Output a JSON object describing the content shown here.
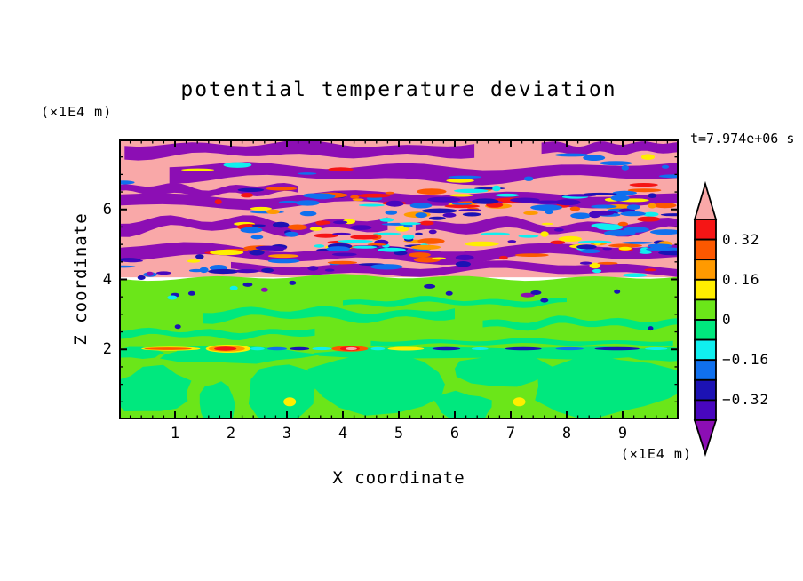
{
  "title": "potential temperature deviation",
  "timestamp_label": "t=7.974e+06 s",
  "z_unit_label": "(×1E4 m)",
  "x_unit_label": "(×1E4 m)",
  "x_axis_label": "X coordinate",
  "z_axis_label": "Z coordinate",
  "chart_data": {
    "type": "heatmap",
    "subtype": "filled_contour",
    "title": "potential temperature deviation",
    "xlabel": "X coordinate",
    "ylabel": "Z coordinate",
    "x_unit": "(×1E4 m)",
    "z_unit": "(×1E4 m)",
    "timestamp": "t=7.974e+06 s",
    "x_range": [
      0,
      10
    ],
    "z_range": [
      0,
      8
    ],
    "x_major_ticks": [
      1,
      2,
      3,
      4,
      5,
      6,
      7,
      8,
      9
    ],
    "z_major_ticks": [
      2,
      4,
      6
    ],
    "x_minor_step": 0.2,
    "z_minor_step": 0.5,
    "grid": false,
    "legend_position": "right-colorbar",
    "contour_levels": [
      -0.4,
      -0.32,
      -0.24,
      -0.16,
      -0.08,
      0,
      0.08,
      0.16,
      0.24,
      0.32,
      0.4
    ],
    "colorbar": {
      "labels": [
        "0.32",
        "0.16",
        "0",
        "−0.16",
        "−0.32"
      ],
      "label_boundaries": [
        1,
        3,
        5,
        7,
        9
      ],
      "segment_colors": [
        "red",
        "orangered",
        "orange",
        "yellow",
        "chartreuse",
        "springgreen",
        "cyan",
        "blue",
        "navy",
        "indigo"
      ],
      "over_color": "pink",
      "under_color": "purple"
    },
    "palette": {
      "pink": "#F9A8A8",
      "red": "#F51515",
      "orangered": "#FC5800",
      "orange": "#FF9A00",
      "yellow": "#FFEE00",
      "chartreuse": "#6BE619",
      "springgreen": "#00E87E",
      "cyan": "#10EFEF",
      "blue": "#1070EE",
      "navy": "#1C12B4",
      "indigo": "#4806BE",
      "purple": "#8C0EB4"
    },
    "field": {
      "description": "Stably stratified upper region (z>4, alternating ±0.4 pink/purple gravity-wave bands with turbulent red-orange-blue breaking layers), near-zero boundary layer below z=4 (chartreuse/springgreen), thin multicolor inversion streak at z≈2, cellular convection pattern below.",
      "pink_top": true,
      "green_top_z": 4.06,
      "inversion_z": 2.02,
      "purple_bands": [
        [
          7.7,
          13,
          2.5,
          0.5,
          0.1,
          6.35
        ],
        [
          7.75,
          11,
          2.0,
          2.1,
          7.55,
          10
        ],
        [
          7.05,
          15,
          3.0,
          1.3,
          0.9,
          10
        ],
        [
          6.55,
          9,
          2.5,
          4.2,
          0,
          3.2
        ],
        [
          6.28,
          12,
          3.0,
          2.6,
          0,
          10
        ],
        [
          5.55,
          12,
          4.0,
          0.9,
          0,
          4.8
        ],
        [
          5.5,
          11,
          3.5,
          3.7,
          5.3,
          10
        ],
        [
          4.75,
          13,
          4.0,
          1.7,
          0,
          10
        ],
        [
          4.3,
          9,
          3.0,
          5.1,
          2.0,
          10
        ]
      ],
      "streak_clusters": [
        {
          "x": [
            1.2,
            9.95
          ],
          "z": [
            5.85,
            6.62
          ],
          "n": 55,
          "seed": 7,
          "colors": [
            "red",
            "orangered",
            "orange",
            "yellow",
            "cyan",
            "blue",
            "navy"
          ]
        },
        {
          "x": [
            2.2,
            9.95
          ],
          "z": [
            4.85,
            5.8
          ],
          "n": 80,
          "seed": 11,
          "colors": [
            "red",
            "orangered",
            "orange",
            "yellow",
            "cyan",
            "blue",
            "navy",
            "indigo"
          ]
        },
        {
          "x": [
            0.05,
            9.95
          ],
          "z": [
            4.12,
            4.95
          ],
          "n": 55,
          "seed": 23,
          "colors": [
            "orangered",
            "red",
            "navy",
            "blue",
            "cyan",
            "orange",
            "yellow",
            "indigo"
          ]
        },
        {
          "x": [
            0.05,
            9.95
          ],
          "z": [
            6.7,
            7.9
          ],
          "n": 16,
          "seed": 31,
          "colors": [
            "cyan",
            "blue",
            "red",
            "yellow"
          ]
        },
        {
          "x": [
            4.5,
            9.95
          ],
          "z": [
            5.8,
            6.5
          ],
          "n": 28,
          "seed": 41,
          "colors": [
            "navy",
            "blue",
            "indigo"
          ]
        }
      ],
      "spring_patches": [
        [
          3.0,
          10,
          3.0,
          0.8,
          1.5,
          6.0
        ],
        [
          2.75,
          8,
          2.5,
          2.9,
          6.5,
          10
        ],
        [
          2.45,
          7,
          2.0,
          1.4,
          0,
          3.5
        ],
        [
          3.35,
          6,
          2.0,
          3.3,
          4.0,
          8.0
        ],
        [
          2.2,
          5,
          1.5,
          0.3,
          4.5,
          9.9
        ]
      ],
      "lower_spring_blobs": [
        [
          0.6,
          0.8,
          46,
          26,
          3
        ],
        [
          1.75,
          0.45,
          22,
          26,
          5
        ],
        [
          2.9,
          0.8,
          42,
          34,
          8
        ],
        [
          2.1,
          1.85,
          85,
          9,
          9
        ],
        [
          4.7,
          1.0,
          78,
          34,
          13
        ],
        [
          6.15,
          0.35,
          32,
          16,
          15
        ],
        [
          6.9,
          1.45,
          52,
          18,
          17
        ],
        [
          8.7,
          0.95,
          82,
          34,
          19
        ],
        [
          9.7,
          1.85,
          40,
          8,
          21
        ],
        [
          0.3,
          1.9,
          30,
          6,
          25
        ],
        [
          5.5,
          1.9,
          120,
          7,
          27
        ],
        [
          8.3,
          1.88,
          90,
          7,
          29
        ]
      ],
      "dark_dashes": [
        [
          0.4,
          4.05,
          9,
          "navy"
        ],
        [
          0.55,
          4.16,
          8,
          "purple"
        ],
        [
          1.0,
          3.55,
          10,
          "navy"
        ],
        [
          0.95,
          3.48,
          11,
          "cyan"
        ],
        [
          1.3,
          3.6,
          8,
          "navy"
        ],
        [
          2.05,
          3.75,
          9,
          "cyan"
        ],
        [
          2.3,
          3.85,
          11,
          "navy"
        ],
        [
          2.6,
          3.7,
          8,
          "purple"
        ],
        [
          3.1,
          3.9,
          8,
          "navy"
        ],
        [
          1.05,
          2.65,
          7,
          "navy"
        ],
        [
          5.55,
          3.8,
          13,
          "navy"
        ],
        [
          5.9,
          3.6,
          8,
          "navy"
        ],
        [
          7.3,
          3.55,
          16,
          "purple"
        ],
        [
          7.45,
          3.62,
          12,
          "navy"
        ],
        [
          7.6,
          3.4,
          9,
          "navy"
        ],
        [
          8.9,
          3.65,
          7,
          "navy"
        ],
        [
          9.5,
          2.6,
          6,
          "navy"
        ]
      ],
      "inversion_features": [
        [
          0.4,
          1.45,
          "yellow",
          2.2
        ],
        [
          0.45,
          1.3,
          "orangered",
          1.4
        ],
        [
          1.55,
          2.35,
          "yellow",
          4.5
        ],
        [
          1.6,
          2.25,
          "orange",
          3.2
        ],
        [
          1.7,
          2.1,
          "red",
          2.2
        ],
        [
          2.35,
          2.6,
          "cyan",
          1.8
        ],
        [
          2.65,
          3.0,
          "blue",
          1.8
        ],
        [
          3.05,
          3.4,
          "navy",
          1.8
        ],
        [
          3.45,
          3.8,
          "cyan",
          1.6
        ],
        [
          3.8,
          4.45,
          "orangered",
          3.2
        ],
        [
          3.95,
          4.3,
          "red",
          2.4
        ],
        [
          4.05,
          4.25,
          "pink",
          1.6
        ],
        [
          4.5,
          4.75,
          "cyan",
          1.8
        ],
        [
          4.8,
          5.45,
          "yellow",
          2.0
        ],
        [
          5.6,
          6.1,
          "navy",
          1.7
        ],
        [
          6.3,
          6.6,
          "cyan",
          1.5
        ],
        [
          6.9,
          7.55,
          "navy",
          1.8
        ],
        [
          7.8,
          8.3,
          "blue",
          1.6
        ],
        [
          8.5,
          9.3,
          "navy",
          1.8
        ],
        [
          9.4,
          9.8,
          "cyan",
          1.5
        ]
      ],
      "yellow_dots": [
        [
          3.05,
          0.5
        ],
        [
          7.15,
          0.5
        ]
      ]
    }
  }
}
